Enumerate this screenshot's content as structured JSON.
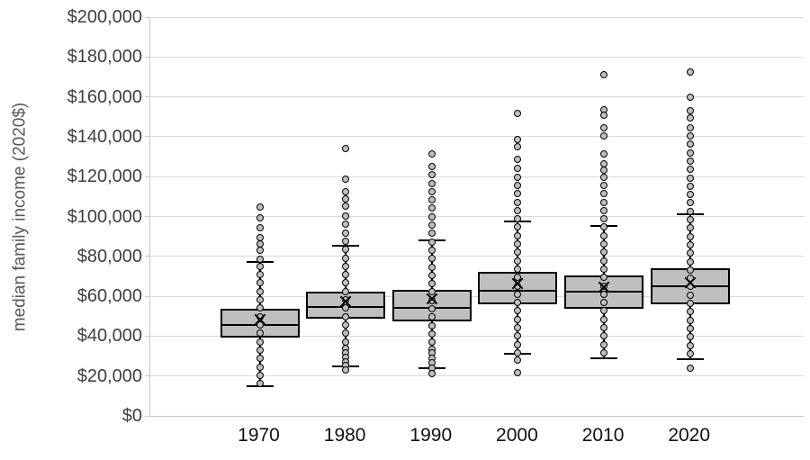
{
  "chart_data": {
    "type": "boxplot",
    "title": "",
    "xlabel": "",
    "ylabel": "median family income (2020$)",
    "ylim": [
      0,
      200000
    ],
    "ytick_step": 20000,
    "ytick_labels": [
      "$0",
      "$20,000",
      "$40,000",
      "$60,000",
      "$80,000",
      "$100,000",
      "$120,000",
      "$140,000",
      "$160,000",
      "$180,000",
      "$200,000"
    ],
    "grid": true,
    "legend": false,
    "categories": [
      "1970",
      "1980",
      "1990",
      "2000",
      "2010",
      "2020"
    ],
    "series": [
      {
        "year": "1970",
        "whisker_low": 15000,
        "q1": 39300,
        "median": 45700,
        "mean": 48300,
        "q3": 53600,
        "whisker_high": 77200,
        "points": [
          104700,
          99500,
          94500,
          89300,
          86200,
          83200,
          78700,
          75000,
          70800,
          66600,
          62400,
          58200,
          54000,
          49800,
          45600,
          41400,
          37200,
          33000,
          28800,
          24600,
          20400,
          16200
        ]
      },
      {
        "year": "1980",
        "whisker_low": 25000,
        "q1": 48600,
        "median": 54600,
        "mean": 57300,
        "q3": 62300,
        "whisker_high": 85400,
        "points": [
          134100,
          118700,
          112300,
          108800,
          105100,
          100200,
          96000,
          91800,
          87600,
          83400,
          79200,
          75000,
          70800,
          66600,
          62400,
          58200,
          54000,
          49800,
          45600,
          41400,
          37200,
          34000,
          31700,
          29500,
          27200,
          25200,
          23000
        ]
      },
      {
        "year": "1990",
        "whisker_low": 24000,
        "q1": 47500,
        "median": 54300,
        "mean": 58800,
        "q3": 63300,
        "whisker_high": 88000,
        "points": [
          131400,
          125100,
          120900,
          116700,
          112500,
          108300,
          104100,
          99900,
          95700,
          91500,
          87300,
          83100,
          78900,
          74700,
          70500,
          66300,
          62100,
          57900,
          53700,
          49500,
          45300,
          41100,
          37000,
          33500,
          31500,
          29000,
          26500,
          24000,
          21300
        ]
      },
      {
        "year": "2000",
        "whisker_low": 31300,
        "q1": 56100,
        "median": 62900,
        "mean": 66400,
        "q3": 72100,
        "whisker_high": 97700,
        "points": [
          151700,
          138600,
          134900,
          128800,
          124000,
          119800,
          115600,
          111400,
          107200,
          103000,
          98800,
          94600,
          90400,
          86200,
          82000,
          77800,
          73600,
          69400,
          65200,
          61000,
          56800,
          52600,
          48400,
          44200,
          40000,
          35800,
          31600,
          28000,
          21800
        ]
      },
      {
        "year": "2010",
        "whisker_low": 29000,
        "q1": 53600,
        "median": 62200,
        "mean": 64400,
        "q3": 70600,
        "whisker_high": 95300,
        "points": [
          171300,
          153700,
          150700,
          144600,
          140600,
          131500,
          126600,
          123100,
          119800,
          115600,
          111400,
          107200,
          103000,
          98800,
          94600,
          90400,
          86200,
          82000,
          77800,
          73600,
          69400,
          65200,
          61000,
          56800,
          52600,
          48400,
          44200,
          40000,
          35800,
          31600
        ]
      },
      {
        "year": "2020",
        "whisker_low": 28300,
        "q1": 56100,
        "median": 64900,
        "mean": 66700,
        "q3": 73900,
        "whisker_high": 101300,
        "points": [
          172500,
          159700,
          152900,
          149600,
          144600,
          140400,
          136200,
          132000,
          127800,
          123600,
          119400,
          115200,
          111000,
          106800,
          102600,
          98400,
          94200,
          90000,
          85800,
          81600,
          77400,
          73200,
          69000,
          64800,
          60600,
          56400,
          52200,
          48000,
          43800,
          39600,
          35400,
          31200,
          23900
        ]
      }
    ]
  },
  "colors": {
    "box_fill": "#bfbfbf",
    "box_border": "#000000",
    "median": "#000000",
    "whisker": "#000000",
    "mean_marker": "#000000",
    "point_fill": "#bfbfbf",
    "point_border": "#000000",
    "grid": "#d9d9d9",
    "axis": "#c6c6c6",
    "y_tick_text": "#404040",
    "x_tick_text": "#111111",
    "y_title_text": "#595959",
    "background": "#ffffff"
  }
}
